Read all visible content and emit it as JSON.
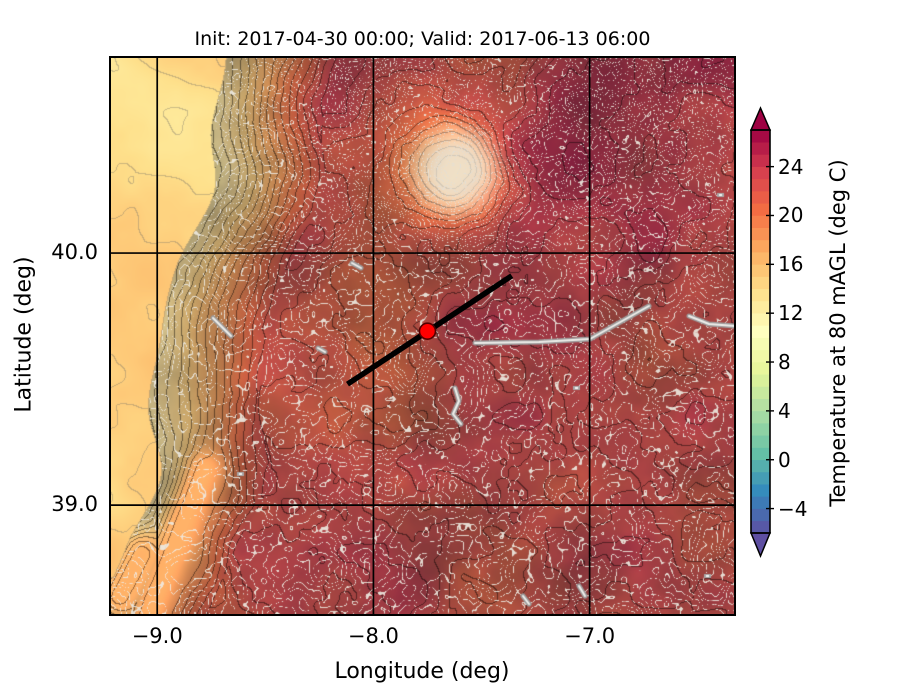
{
  "figure": {
    "title": "Init: 2017-04-30 00:00; Valid: 2017-06-13 06:00",
    "init_time": "2017-04-30 00:00",
    "valid_time": "2017-06-13 06:00",
    "background_color": "#ffffff"
  },
  "chart_data": {
    "type": "heatmap",
    "subtype": "filled-contour-temperature-map",
    "title": "Init: 2017-04-30 00:00; Valid: 2017-06-13 06:00",
    "xlabel": "Longitude (deg)",
    "ylabel": "Latitude (deg)",
    "xlim": [
      -9.223,
      -6.323
    ],
    "ylim": [
      38.56,
      40.782
    ],
    "x_ticks": [
      {
        "value": -9.0,
        "label": "−9.0"
      },
      {
        "value": -8.0,
        "label": "−8.0"
      },
      {
        "value": -7.0,
        "label": "−7.0"
      }
    ],
    "y_ticks": [
      {
        "value": 39.0,
        "label": "39.0"
      },
      {
        "value": 40.0,
        "label": "40.0"
      }
    ],
    "grid": true,
    "grid_color": "#000000",
    "colorbar": {
      "label": "Temperature at 80 mAGL (deg C)",
      "ticks": [
        {
          "value": -4,
          "label": "−4"
        },
        {
          "value": 0,
          "label": "0"
        },
        {
          "value": 4,
          "label": "4"
        },
        {
          "value": 8,
          "label": "8"
        },
        {
          "value": 12,
          "label": "12"
        },
        {
          "value": 16,
          "label": "16"
        },
        {
          "value": 20,
          "label": "20"
        },
        {
          "value": 24,
          "label": "24"
        }
      ],
      "vmin": -6,
      "vmax": 27,
      "level_step": 1,
      "colormap": "Spectral_r",
      "extend": "both",
      "palette": [
        "#5e4fa2",
        "#3288bd",
        "#66c2a5",
        "#abdda4",
        "#e6f598",
        "#ffffbf",
        "#fee08b",
        "#fdae61",
        "#f46d43",
        "#d53e4f",
        "#9e0142"
      ]
    },
    "marker": {
      "lon": -7.75,
      "lat": 39.69,
      "color": "#ff0000",
      "edge_color": "#550000"
    },
    "transect_line": {
      "from": {
        "lon": -8.12,
        "lat": 39.48
      },
      "to": {
        "lon": -7.36,
        "lat": 39.91
      },
      "color": "#000000"
    },
    "map_summary": "Filled 1-degC temperature contours over western Iberia with white terrain contour lines: warm maroon interior (~20-27 C), orange Atlantic ocean in the northwest (~14-17 C), olive-tan coastal band (~10-14 C), pale cool spot at Serra da Estrela, bright orange warm valley in the southwest"
  }
}
